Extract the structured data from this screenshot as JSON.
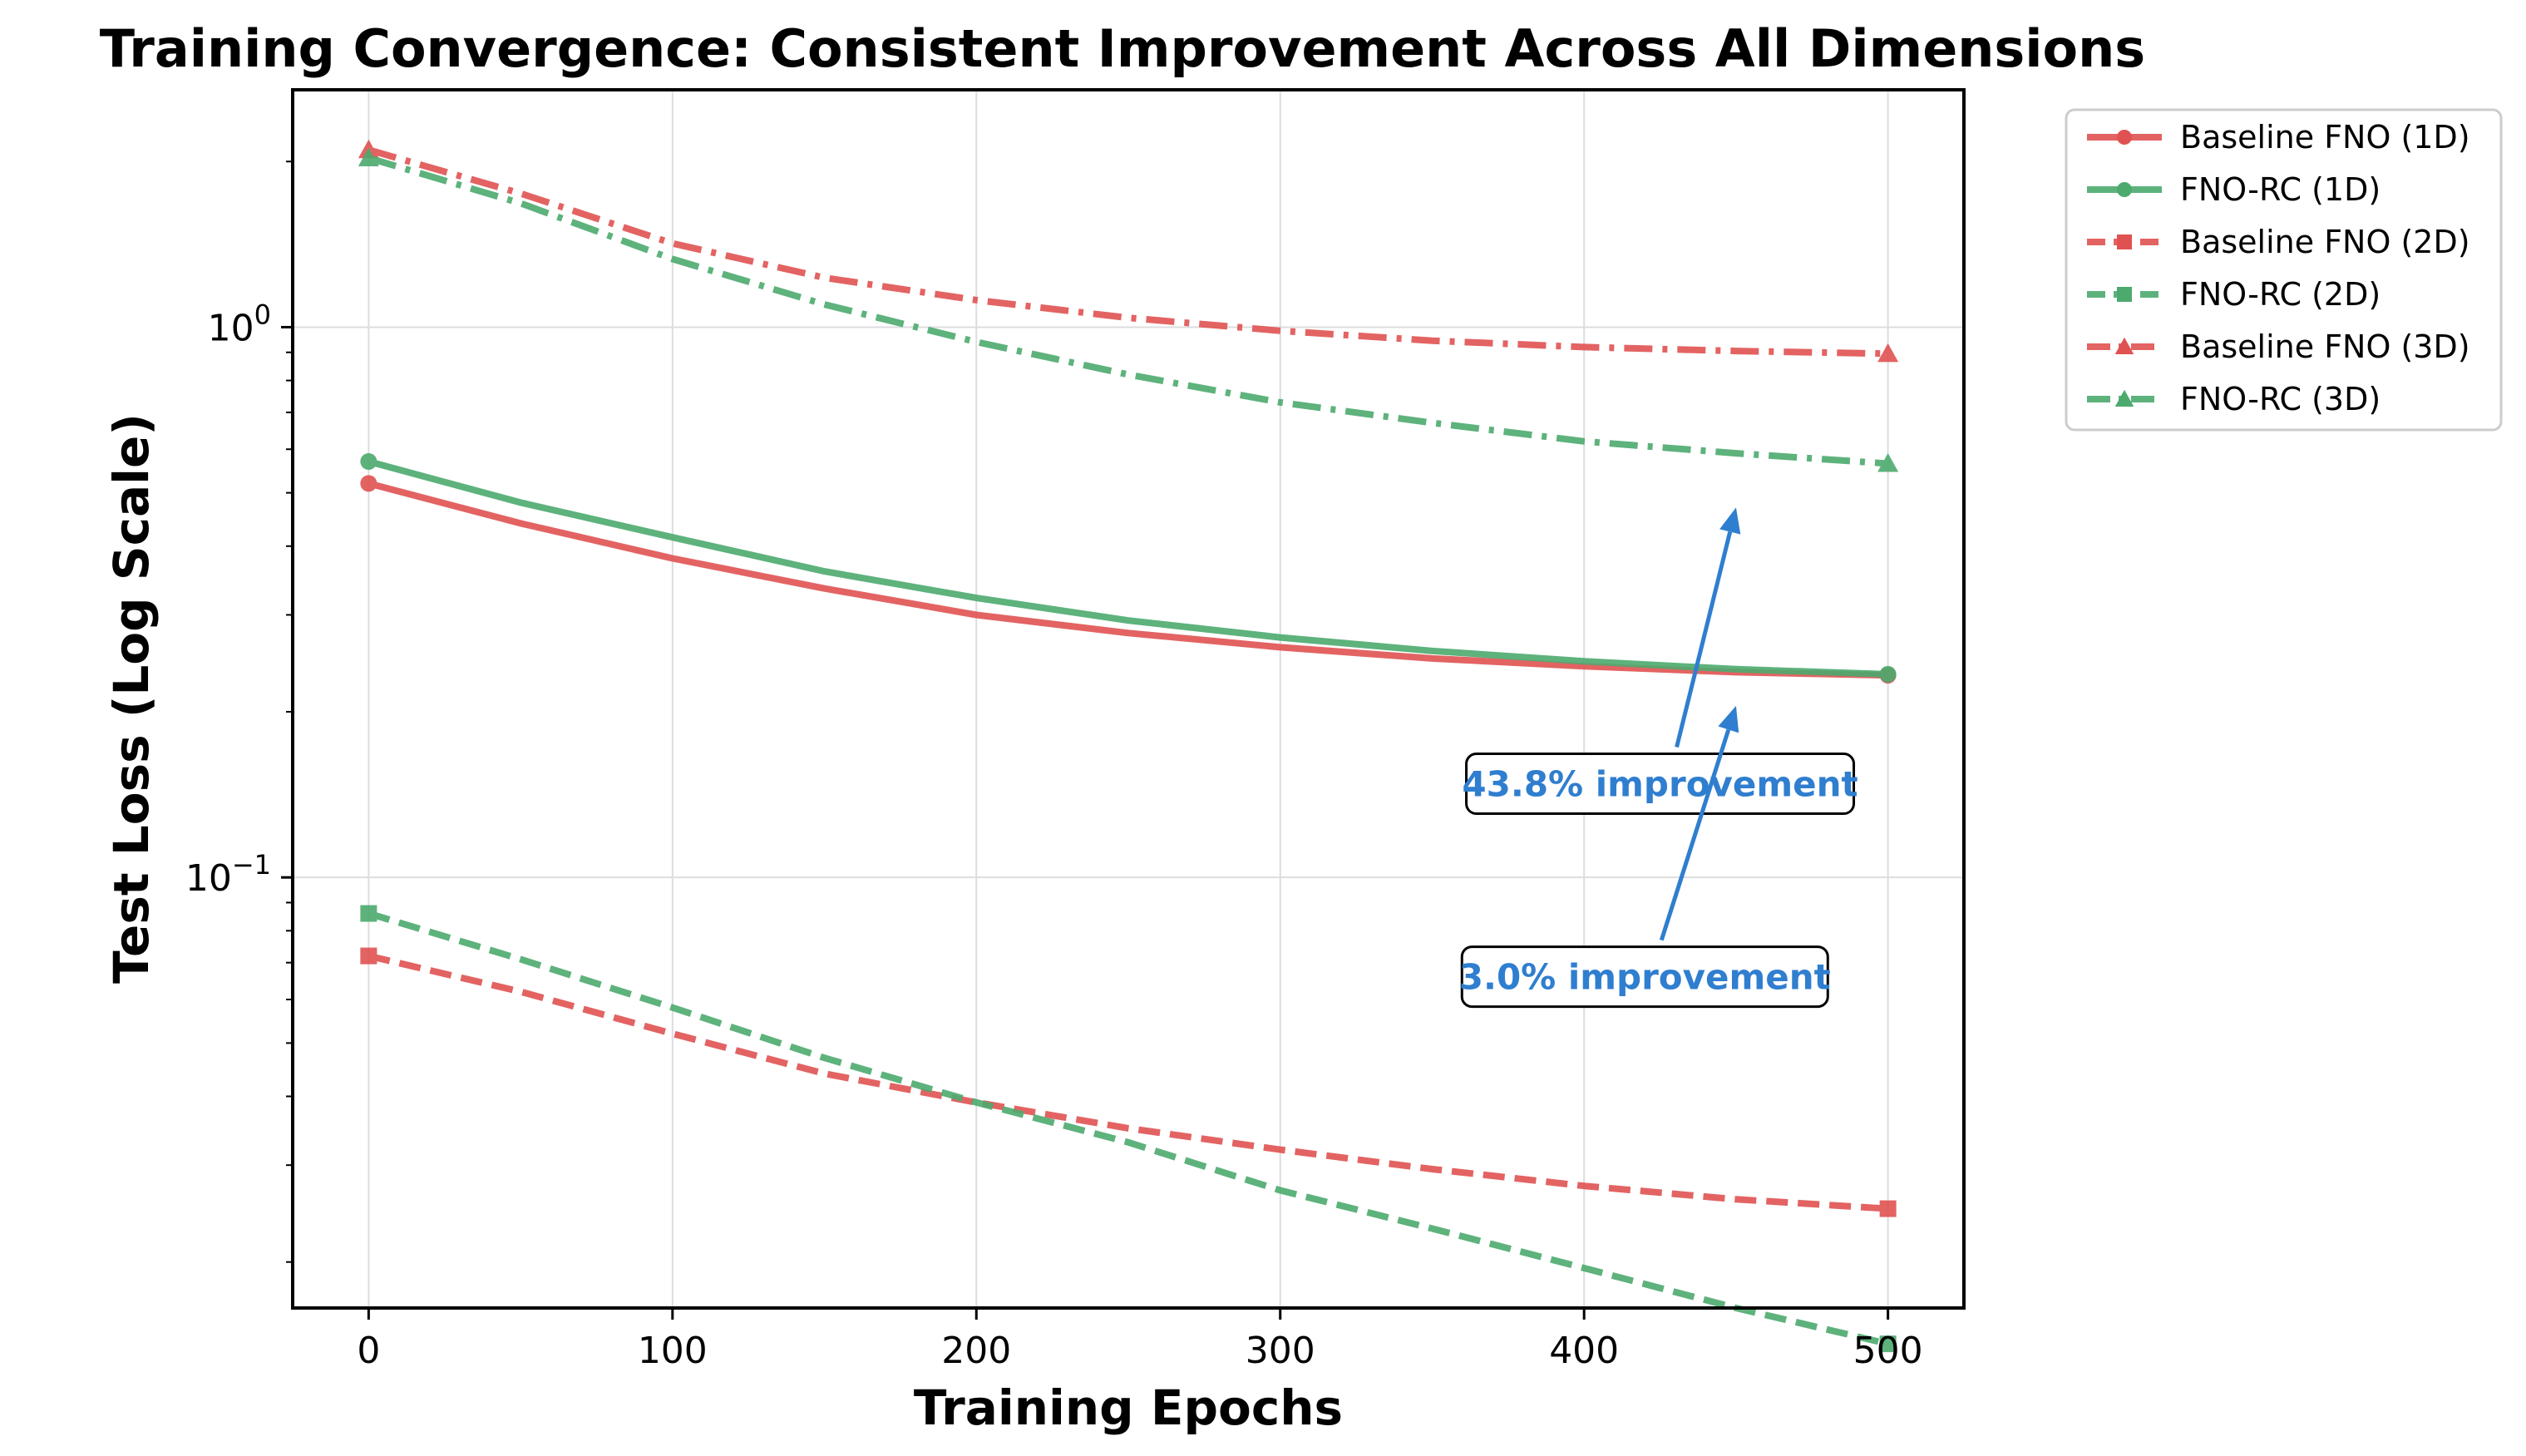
{
  "chart_data": {
    "type": "line",
    "title": "Training Convergence: Consistent Improvement Across All Dimensions",
    "xlabel": "Training Epochs",
    "ylabel": "Test Loss (Log Scale)",
    "xlim": [
      -25,
      525
    ],
    "ylim": [
      0.0165,
      2.7
    ],
    "yscale": "log",
    "grid": true,
    "legend_position": "outside-top-right",
    "x_ticks": [
      0,
      100,
      200,
      300,
      400,
      500
    ],
    "y_ticks": [
      {
        "value": 1,
        "base": "10",
        "exponent": "0"
      },
      {
        "value": 0.1,
        "base": "10",
        "exponent": "−1"
      }
    ],
    "x": [
      0,
      50,
      100,
      150,
      200,
      250,
      300,
      350,
      400,
      450,
      500
    ],
    "series": [
      {
        "name": "Baseline FNO (1D)",
        "color": "#e05252",
        "linestyle": "solid",
        "marker": "circle",
        "values": [
          0.52,
          0.44,
          0.38,
          0.335,
          0.3,
          0.278,
          0.262,
          0.25,
          0.242,
          0.236,
          0.233
        ]
      },
      {
        "name": "FNO-RC (1D)",
        "color": "#4caa6e",
        "linestyle": "solid",
        "marker": "circle",
        "values": [
          0.57,
          0.48,
          0.415,
          0.36,
          0.322,
          0.293,
          0.273,
          0.258,
          0.247,
          0.239,
          0.234
        ]
      },
      {
        "name": "Baseline FNO (2D)",
        "color": "#e05252",
        "linestyle": "dashed",
        "marker": "square",
        "values": [
          0.072,
          0.062,
          0.052,
          0.044,
          0.039,
          0.035,
          0.032,
          0.0295,
          0.0275,
          0.026,
          0.025
        ]
      },
      {
        "name": "FNO-RC (2D)",
        "color": "#4caa6e",
        "linestyle": "dashed",
        "marker": "square",
        "values": [
          0.086,
          0.071,
          0.058,
          0.047,
          0.039,
          0.033,
          0.027,
          0.023,
          0.0195,
          0.0165,
          0.0142
        ]
      },
      {
        "name": "Baseline FNO (3D)",
        "color": "#e05252",
        "linestyle": "dashdot",
        "marker": "triangle",
        "values": [
          2.1,
          1.75,
          1.42,
          1.23,
          1.12,
          1.04,
          0.985,
          0.945,
          0.92,
          0.905,
          0.895
        ]
      },
      {
        "name": "FNO-RC (3D)",
        "color": "#4caa6e",
        "linestyle": "dashdot",
        "marker": "triangle",
        "values": [
          2.03,
          1.68,
          1.33,
          1.1,
          0.94,
          0.82,
          0.73,
          0.67,
          0.62,
          0.59,
          0.565
        ]
      }
    ],
    "annotations": [
      {
        "text": "43.8% improvement",
        "color": "#2f7ecf",
        "text_xy": [
          425,
          0.148
        ],
        "arrow_to": [
          450,
          0.47
        ]
      },
      {
        "text": "3.0% improvement",
        "color": "#2f7ecf",
        "text_xy": [
          420,
          0.066
        ],
        "arrow_to": [
          450,
          0.205
        ]
      }
    ]
  }
}
